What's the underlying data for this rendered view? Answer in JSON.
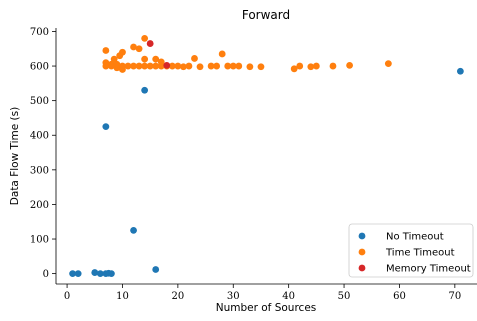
{
  "chart_data": {
    "type": "scatter",
    "title": "Forward",
    "xlabel": "Number of Sources",
    "ylabel": "Data Flow Time (s)",
    "xlim": [
      -2,
      74
    ],
    "ylim": [
      -30,
      710
    ],
    "xticks": [
      0,
      10,
      20,
      30,
      40,
      50,
      60,
      70
    ],
    "yticks": [
      0,
      100,
      200,
      300,
      400,
      500,
      600,
      700
    ],
    "grid": false,
    "legend_position": "lower-right",
    "series": [
      {
        "name": "No Timeout",
        "color": "#1f77b4",
        "points": [
          [
            1,
            0
          ],
          [
            2,
            0
          ],
          [
            5,
            3
          ],
          [
            6,
            0
          ],
          [
            7,
            0
          ],
          [
            7.5,
            1
          ],
          [
            8,
            0
          ],
          [
            7,
            425
          ],
          [
            12,
            125
          ],
          [
            14,
            530
          ],
          [
            16,
            12
          ],
          [
            71,
            585
          ]
        ]
      },
      {
        "name": "Time Timeout",
        "color": "#ff7f0e",
        "points": [
          [
            7,
            645
          ],
          [
            7,
            610
          ],
          [
            7,
            600
          ],
          [
            8,
            600
          ],
          [
            8,
            605
          ],
          [
            8.5,
            620
          ],
          [
            9,
            595
          ],
          [
            9,
            605
          ],
          [
            9.5,
            630
          ],
          [
            10,
            640
          ],
          [
            10,
            600
          ],
          [
            10,
            590
          ],
          [
            11,
            600
          ],
          [
            12,
            655
          ],
          [
            12,
            600
          ],
          [
            13,
            650
          ],
          [
            13,
            600
          ],
          [
            14,
            680
          ],
          [
            14,
            620
          ],
          [
            14,
            600
          ],
          [
            15,
            600
          ],
          [
            16,
            620
          ],
          [
            16,
            600
          ],
          [
            17,
            600
          ],
          [
            17,
            612
          ],
          [
            18,
            600
          ],
          [
            19,
            600
          ],
          [
            20,
            600
          ],
          [
            21,
            598
          ],
          [
            22,
            600
          ],
          [
            23,
            622
          ],
          [
            24,
            598
          ],
          [
            26,
            600
          ],
          [
            27,
            600
          ],
          [
            28,
            635
          ],
          [
            29,
            600
          ],
          [
            30,
            600
          ],
          [
            31,
            600
          ],
          [
            33,
            598
          ],
          [
            35,
            598
          ],
          [
            41,
            592
          ],
          [
            42,
            600
          ],
          [
            44,
            598
          ],
          [
            45,
            600
          ],
          [
            48,
            600
          ],
          [
            51,
            602
          ],
          [
            58,
            607
          ]
        ]
      },
      {
        "name": "Memory Timeout",
        "color": "#d62728",
        "points": [
          [
            15,
            665
          ],
          [
            18,
            602
          ]
        ]
      }
    ]
  }
}
